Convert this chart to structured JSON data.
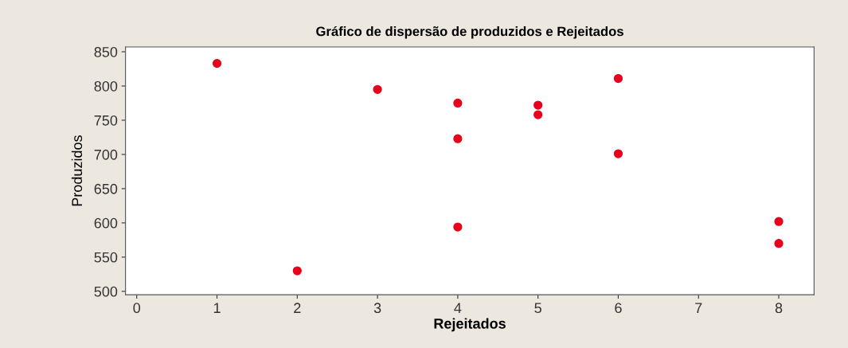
{
  "chart_data": {
    "type": "scatter",
    "title": "Gráfico de dispersão de produzidos e Rejeitados",
    "xlabel": "Rejeitados",
    "ylabel": "Produzidos",
    "x": [
      1,
      2,
      3,
      4,
      4,
      4,
      5,
      5,
      6,
      6,
      8,
      8
    ],
    "series": [
      {
        "color": "#e8001c",
        "values": [
          833,
          530,
          795,
          775,
          723,
          594,
          772,
          758,
          811,
          701,
          602,
          570
        ]
      }
    ],
    "xlim": [
      -0.14,
      8.44
    ],
    "xticks": [
      0,
      1,
      2,
      3,
      4,
      5,
      6,
      7,
      8
    ],
    "ylim": [
      495,
      857
    ],
    "yticks": [
      500,
      550,
      600,
      650,
      700,
      750,
      800,
      850
    ],
    "marker": "circle",
    "grid": false,
    "legend": false
  }
}
